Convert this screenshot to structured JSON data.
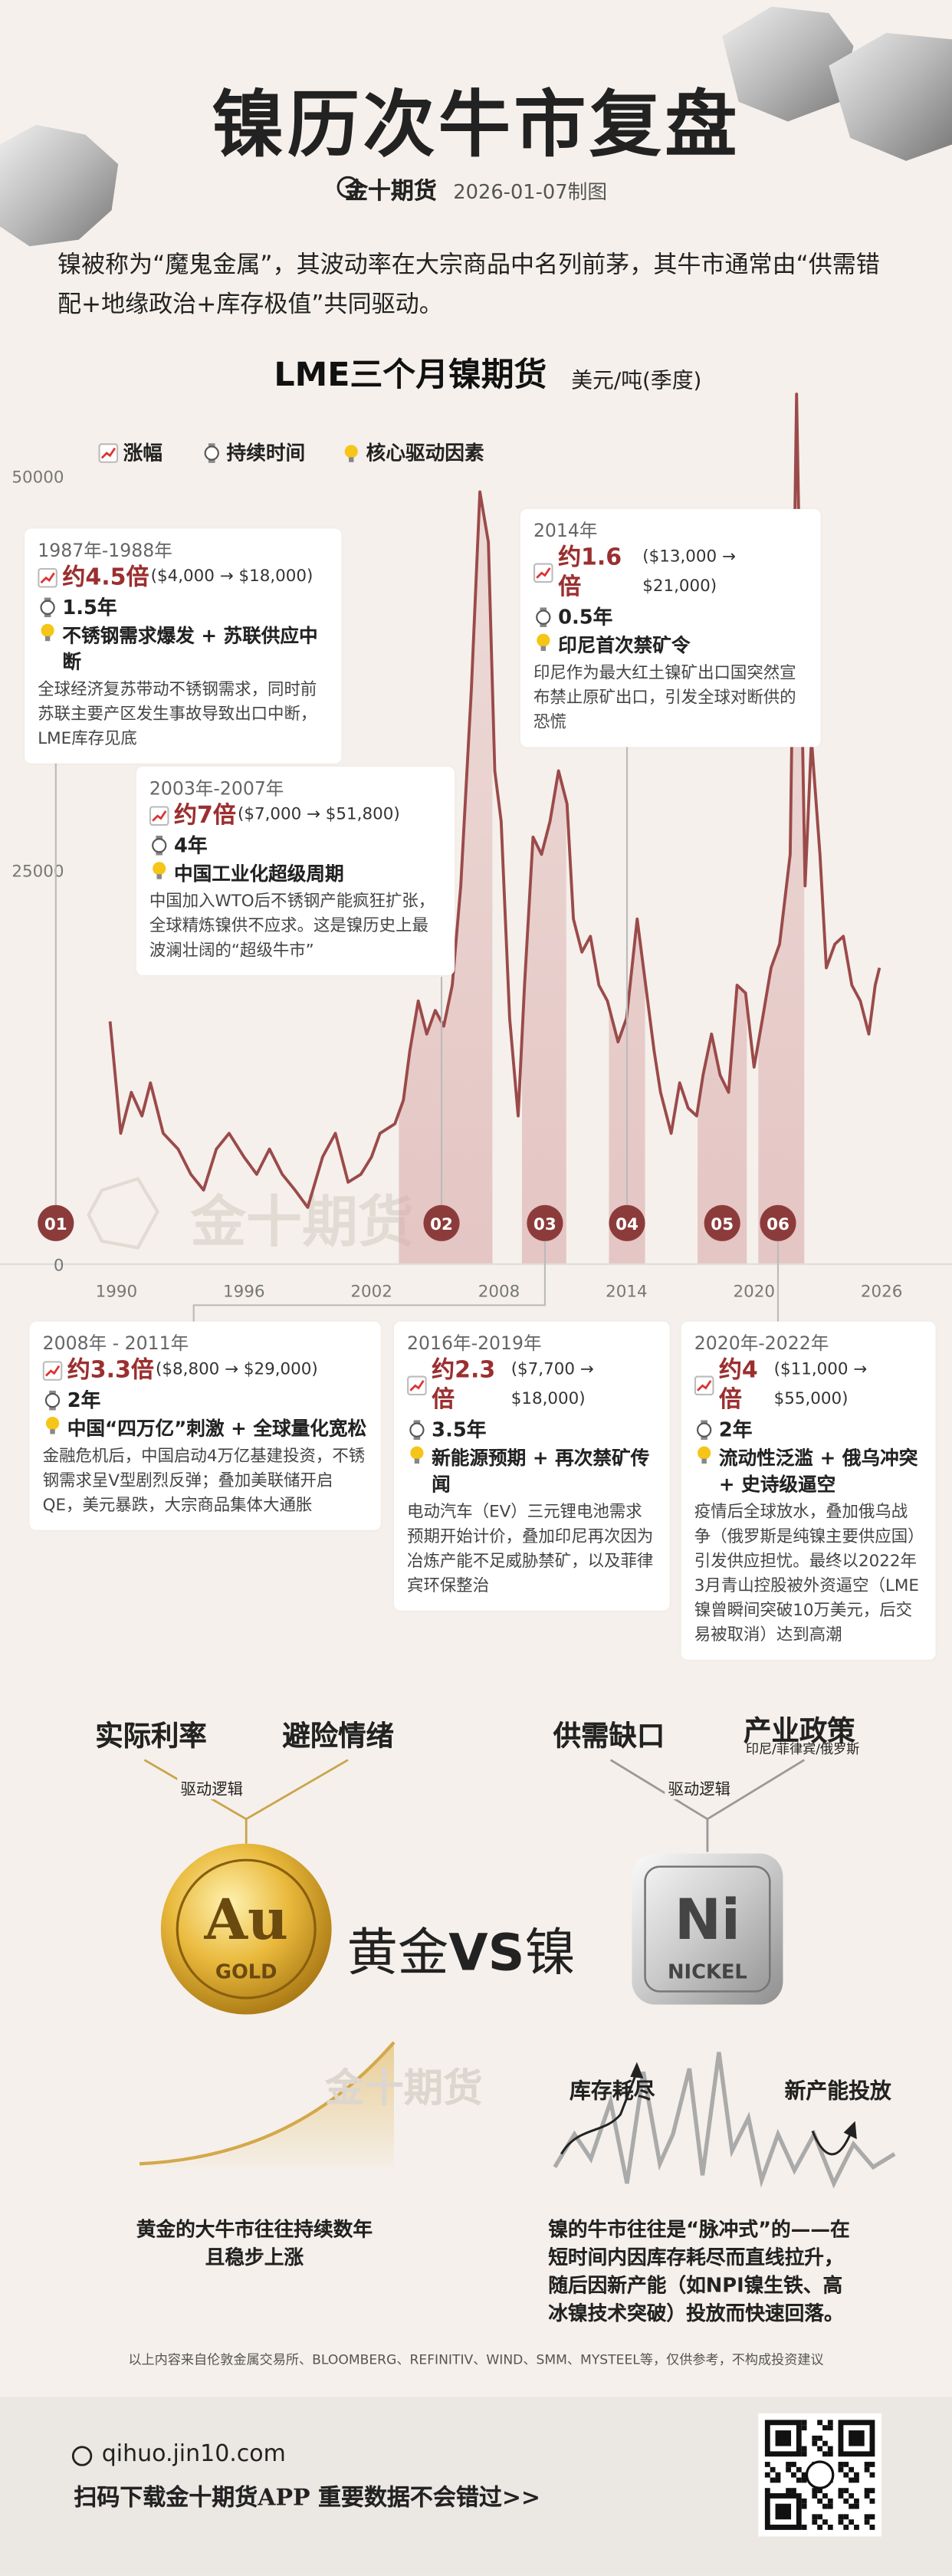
{
  "header": {
    "title": "镍历次牛市复盘",
    "brand": "金十期货",
    "date": "2026-01-07制图"
  },
  "intro": "镍被称为“魔鬼金属”，其波动率在大宗商品中名列前茅，其牛市通常由“供需错配+地缘政治+库存极值”共同驱动。",
  "chart_data": {
    "type": "line",
    "title": "LME三个月镍期货",
    "unit": "美元/吨(季度)",
    "legend": [
      "涨幅",
      "持续时间",
      "核心驱动因素"
    ],
    "watermark": "金十期货",
    "color": "#9b4a4a",
    "x": [
      1989.7,
      1990.2,
      1990.7,
      1991.2,
      1991.6,
      1992.2,
      1992.9,
      1993.5,
      1994.1,
      1994.7,
      1995.3,
      1996.0,
      1996.6,
      1997.2,
      1997.8,
      1998.4,
      1999.0,
      1999.7,
      2000.3,
      2000.9,
      2001.5,
      2002.0,
      2002.4,
      2003.1,
      2003.5,
      2003.8,
      2004.2,
      2004.6,
      2005.0,
      2005.4,
      2005.8,
      2006.2,
      2006.7,
      2007.1,
      2007.5,
      2007.8,
      2008.1,
      2008.5,
      2008.9,
      2009.2,
      2009.6,
      2010.0,
      2010.4,
      2010.8,
      2011.2,
      2011.5,
      2011.9,
      2012.3,
      2012.7,
      2013.1,
      2013.6,
      2014.0,
      2014.5,
      2014.9,
      2015.3,
      2015.6,
      2016.1,
      2016.5,
      2016.9,
      2017.3,
      2017.6,
      2018.0,
      2018.4,
      2018.8,
      2019.2,
      2019.6,
      2020.0,
      2020.4,
      2020.8,
      2021.2,
      2021.7,
      2022.0,
      2022.4,
      2022.7,
      2023.1,
      2023.4,
      2023.8,
      2024.2,
      2024.6,
      2025.0,
      2025.4,
      2025.7,
      2025.9
    ],
    "values": [
      15400,
      8300,
      10900,
      9400,
      11500,
      8300,
      7300,
      5700,
      4700,
      7300,
      8300,
      6800,
      5700,
      7300,
      5700,
      4700,
      3600,
      6800,
      8300,
      5200,
      5700,
      6800,
      8300,
      8900,
      10400,
      13500,
      16700,
      14600,
      16100,
      15100,
      17700,
      24000,
      36500,
      49000,
      45800,
      31300,
      28100,
      15600,
      9400,
      17700,
      27100,
      26000,
      28100,
      31300,
      29200,
      21900,
      19800,
      20800,
      17700,
      16700,
      14100,
      15600,
      21900,
      17700,
      13500,
      10900,
      8300,
      11500,
      9900,
      9400,
      12000,
      14600,
      12000,
      10900,
      17700,
      17200,
      12500,
      15600,
      18800,
      20300,
      26000,
      55200,
      24000,
      33300,
      26000,
      18800,
      20300,
      20800,
      17700,
      16700,
      14600,
      17700,
      18800
    ],
    "xlim": [
      1989,
      2028
    ],
    "ylim": [
      0,
      56000
    ],
    "xticks": [
      1990,
      1996,
      2002,
      2008,
      2014,
      2020,
      2026
    ],
    "yticks": [
      0,
      25000,
      50000
    ],
    "grid": false
  },
  "cards": [
    {
      "marker": "01",
      "period": "1987年-1988年",
      "gain": "约4.5倍",
      "range": "($4,000 → $18,000)",
      "duration": "1.5年",
      "driver": "不锈钢需求爆发 + 苏联供应中断",
      "desc": "全球经济复苏带动不锈钢需求，同时前苏联主要产区发生事故导致出口中断，LME库存见底"
    },
    {
      "marker": "02",
      "period": "2003年-2007年",
      "gain": "约7倍",
      "range": "($7,000 → $51,800)",
      "duration": "4年",
      "driver": "中国工业化超级周期",
      "desc": "中国加入WTO后不锈钢产能疯狂扩张，全球精炼镍供不应求。这是镍历史上最波澜壮阔的“超级牛市”"
    },
    {
      "marker": "03",
      "period": "2008年 - 2011年",
      "gain": "约3.3倍",
      "range": "($8,800 → $29,000)",
      "duration": "2年",
      "driver": "中国“四万亿”刺激 + 全球量化宽松",
      "desc": "金融危机后，中国启动4万亿基建投资，不锈钢需求呈V型剧烈反弹；叠加美联储开启QE，美元暴跌，大宗商品集体大通胀"
    },
    {
      "marker": "04",
      "period": "2014年",
      "gain": "约1.6倍",
      "range": "($13,000 → $21,000)",
      "duration": "0.5年",
      "driver": "印尼首次禁矿令",
      "desc": "印尼作为最大红土镍矿出口国突然宣布禁止原矿出口，引发全球对断供的恐慌"
    },
    {
      "marker": "05",
      "period": "2016年-2019年",
      "gain": "约2.3倍",
      "range": "($7,700 → $18,000)",
      "duration": "3.5年",
      "driver": "新能源预期 + 再次禁矿传闻",
      "desc": "电动汽车（EV）三元锂电池需求预期开始计价，叠加印尼再次因为冶炼产能不足威胁禁矿，以及菲律宾环保整治"
    },
    {
      "marker": "06",
      "period": "2020年-2022年",
      "gain": "约4倍",
      "range": "($11,000 → $55,000)",
      "duration": "2年",
      "driver": "流动性泛滥 + 俄乌冲突 + 史诗级逼空",
      "desc": "疫情后全球放水，叠加俄乌战争（俄罗斯是纯镍主要供应国）引发供应担忧。最终以2022年3月青山控股被外资逼空（LME镍曾瞬间突破10万美元，后交易被取消）达到高潮"
    }
  ],
  "compare": {
    "gold_factors": [
      "实际利率",
      "避险情绪"
    ],
    "nickel_factors": [
      "供需缺口",
      "产业政策"
    ],
    "policy_note": "印尼/菲律宾/俄罗斯",
    "logic": "驱动逻辑",
    "gold_symbol": "Au",
    "gold_name": "GOLD",
    "nickel_symbol": "Ni",
    "nickel_name": "NICKEL",
    "left": "黄金",
    "vs": "VS",
    "right": "镍",
    "watermark": "金十期货",
    "stock_out": "库存耗尽",
    "new_capacity": "新产能投放",
    "gold_caption": [
      "黄金的大牛市往往持续数年",
      "且稳步上涨"
    ],
    "nickel_caption": "镍的牛市往往是“脉冲式”的——在短时间内因库存耗尽而直线拉升，随后因新产能（如NPI镍生铁、高冰镍技术突破）投放而快速回落。"
  },
  "source": "以上内容来自伦敦金属交易所、BLOOMBERG、REFINITIV、WIND、SMM、MYSTEEL等，仅供参考，不构成投资建议",
  "footer": {
    "url": "qihuo.jin10.com",
    "cta": "扫码下载金十期货APP 重要数据不会错过>>"
  }
}
